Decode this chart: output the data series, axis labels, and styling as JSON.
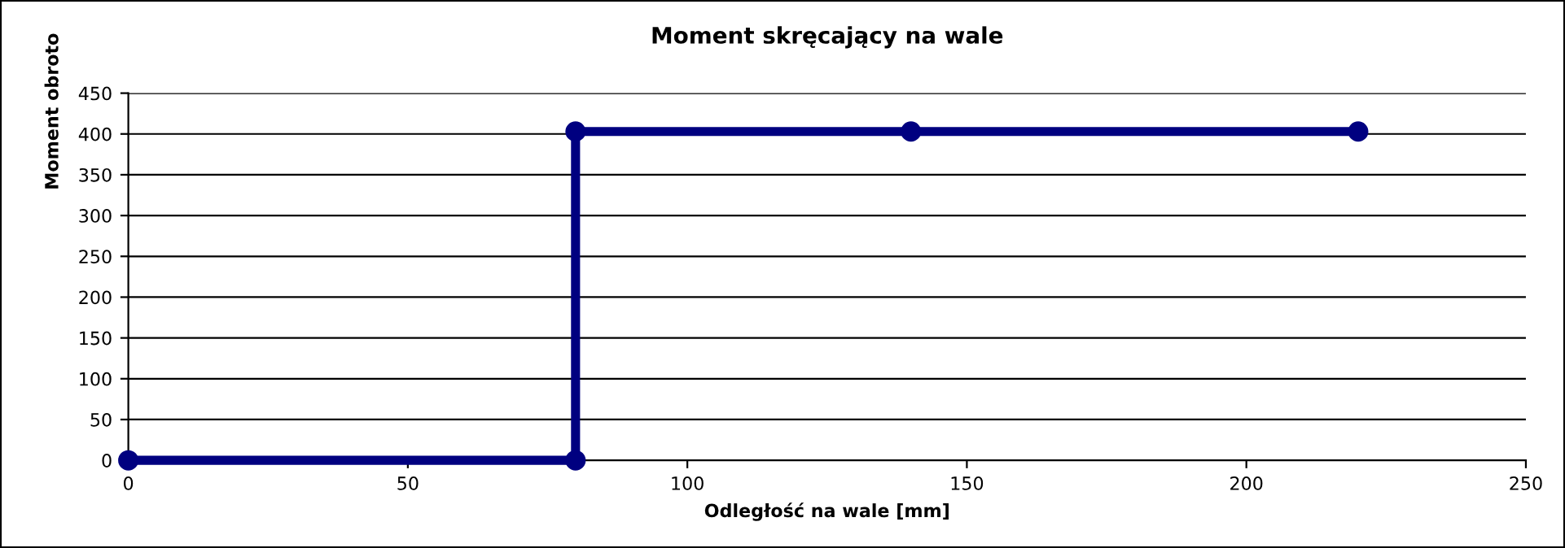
{
  "chart_data": {
    "type": "line",
    "title": "Moment skręcający na wale",
    "xlabel": "Odległość na wale [mm]",
    "ylabel": "Moment obroto",
    "x": [
      0,
      80,
      80,
      140,
      220
    ],
    "series": [
      {
        "color": "#000080",
        "values": [
          0,
          0,
          403,
          403,
          403
        ]
      }
    ],
    "xlim": [
      0,
      250
    ],
    "xticks": [
      0,
      50,
      100,
      150,
      200,
      250
    ],
    "ylim": [
      0,
      450
    ],
    "yticks": [
      0,
      50,
      100,
      150,
      200,
      250,
      300,
      350,
      400,
      450
    ],
    "grid": "y",
    "marker": "circle",
    "line_style": "solid"
  }
}
